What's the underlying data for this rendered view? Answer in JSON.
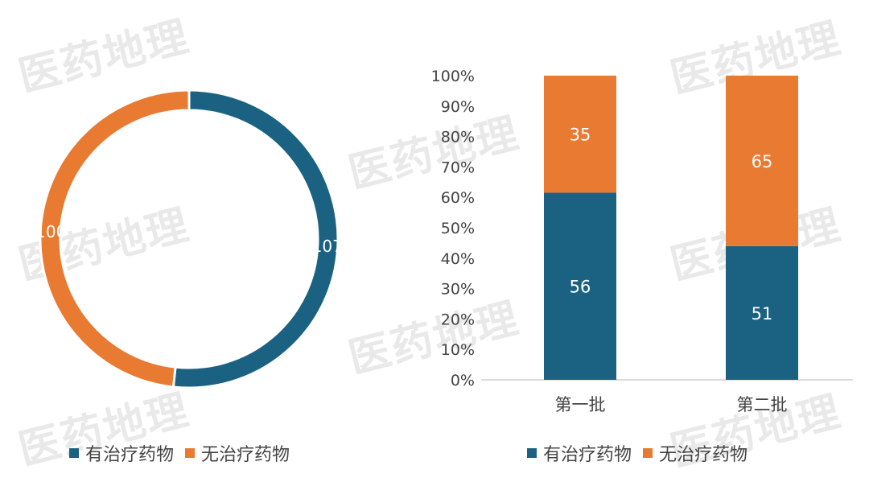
{
  "watermark": "医药地理",
  "colors": {
    "blue": "#1b6282",
    "orange": "#e97a32",
    "axis": "#cfcfcf"
  },
  "chart_data": [
    {
      "type": "pie",
      "variant": "donut",
      "title": "",
      "slices": [
        {
          "name": "有治疗药物",
          "value": 107,
          "color": "#1b6282"
        },
        {
          "name": "无治疗药物",
          "value": 100,
          "color": "#e97a32"
        }
      ],
      "legend": {
        "position": "bottom-left",
        "labels": [
          "有治疗药物",
          "无治疗药物"
        ]
      }
    },
    {
      "type": "bar",
      "variant": "100%-stacked",
      "title": "",
      "categories": [
        "第一批",
        "第二批"
      ],
      "series": [
        {
          "name": "有治疗药物",
          "values": [
            56,
            51
          ],
          "color": "#1b6282"
        },
        {
          "name": "无治疗药物",
          "values": [
            35,
            65
          ],
          "color": "#e97a32"
        }
      ],
      "ylim": [
        0,
        100
      ],
      "yticks": [
        "0%",
        "10%",
        "20%",
        "30%",
        "40%",
        "50%",
        "60%",
        "70%",
        "80%",
        "90%",
        "100%"
      ],
      "xlabel": "",
      "ylabel": "",
      "grid": false,
      "legend": {
        "position": "bottom",
        "labels": [
          "有治疗药物",
          "无治疗药物"
        ]
      }
    }
  ]
}
